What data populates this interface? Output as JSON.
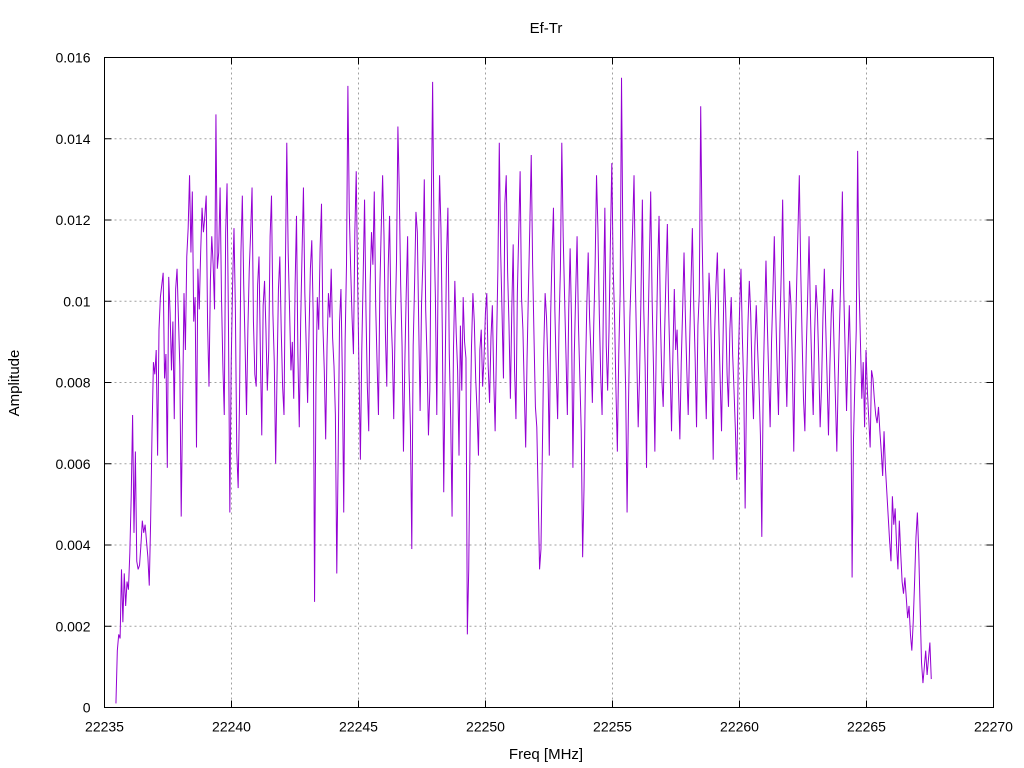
{
  "chart_data": {
    "type": "line",
    "title": "Ef-Tr",
    "xlabel": "Freq [MHz]",
    "ylabel": "Amplitude",
    "xlim": [
      22235,
      22270
    ],
    "ylim": [
      0,
      0.016
    ],
    "x_ticks": [
      "22235",
      "22240",
      "22245",
      "22250",
      "22255",
      "22260",
      "22265",
      "22270"
    ],
    "y_ticks": [
      "0",
      "0.002",
      "0.004",
      "0.006",
      "0.008",
      "0.01",
      "0.012",
      "0.014",
      "0.016"
    ],
    "grid": true,
    "legend": "none",
    "line_color": "#9400d3",
    "series": [
      {
        "x_start": 22235.45,
        "x_end": 22267.55,
        "values": [
          0.0001,
          0.0014,
          0.0018,
          0.0017,
          0.0034,
          0.0021,
          0.0033,
          0.0025,
          0.0031,
          0.0029,
          0.0038,
          0.0052,
          0.0072,
          0.0043,
          0.0063,
          0.0036,
          0.0034,
          0.0035,
          0.004,
          0.0046,
          0.0043,
          0.0045,
          0.0041,
          0.0037,
          0.003,
          0.0046,
          0.0068,
          0.0085,
          0.0082,
          0.0088,
          0.0062,
          0.0093,
          0.0101,
          0.0104,
          0.0107,
          0.0081,
          0.0087,
          0.0059,
          0.0106,
          0.0097,
          0.0083,
          0.0095,
          0.0071,
          0.0103,
          0.0108,
          0.0096,
          0.0084,
          0.0047,
          0.0074,
          0.0102,
          0.0088,
          0.0111,
          0.0118,
          0.0131,
          0.0112,
          0.0127,
          0.0095,
          0.0101,
          0.0064,
          0.0108,
          0.0098,
          0.0112,
          0.0123,
          0.0117,
          0.0121,
          0.0126,
          0.0094,
          0.0079,
          0.0105,
          0.0116,
          0.0109,
          0.0098,
          0.0146,
          0.0108,
          0.0112,
          0.0128,
          0.0101,
          0.0084,
          0.0072,
          0.0117,
          0.0129,
          0.0095,
          0.0048,
          0.0085,
          0.0104,
          0.0118,
          0.0098,
          0.0063,
          0.0054,
          0.0076,
          0.0112,
          0.0126,
          0.0104,
          0.0089,
          0.0072,
          0.0093,
          0.0108,
          0.0117,
          0.0128,
          0.0095,
          0.0082,
          0.0079,
          0.0104,
          0.0111,
          0.0087,
          0.0067,
          0.0099,
          0.0105,
          0.0093,
          0.0078,
          0.0088,
          0.0116,
          0.0126,
          0.0097,
          0.0085,
          0.006,
          0.0082,
          0.0103,
          0.0111,
          0.0093,
          0.0079,
          0.0072,
          0.0108,
          0.0139,
          0.0112,
          0.0098,
          0.0083,
          0.009,
          0.0076,
          0.0104,
          0.0121,
          0.0087,
          0.0069,
          0.0095,
          0.0112,
          0.0128,
          0.0102,
          0.0089,
          0.0075,
          0.0092,
          0.0108,
          0.0115,
          0.0097,
          0.0026,
          0.0079,
          0.0101,
          0.0093,
          0.0113,
          0.0124,
          0.0094,
          0.0083,
          0.0066,
          0.0089,
          0.0102,
          0.0096,
          0.0108,
          0.0091,
          0.0084,
          0.0072,
          0.0033,
          0.0062,
          0.0095,
          0.0103,
          0.0082,
          0.0048,
          0.009,
          0.0109,
          0.0153,
          0.0122,
          0.0108,
          0.0096,
          0.0087,
          0.0117,
          0.0132,
          0.0105,
          0.0083,
          0.0061,
          0.0088,
          0.0106,
          0.0125,
          0.0098,
          0.0079,
          0.0068,
          0.0104,
          0.0117,
          0.0109,
          0.0127,
          0.0099,
          0.0085,
          0.0072,
          0.0103,
          0.0118,
          0.0131,
          0.0116,
          0.0092,
          0.0079,
          0.0108,
          0.0121,
          0.0097,
          0.0088,
          0.0071,
          0.0094,
          0.011,
          0.0143,
          0.0127,
          0.0104,
          0.0089,
          0.0063,
          0.0085,
          0.0102,
          0.0116,
          0.0083,
          0.0069,
          0.0039,
          0.0089,
          0.0104,
          0.0122,
          0.0117,
          0.0094,
          0.0073,
          0.0099,
          0.011,
          0.013,
          0.0098,
          0.0086,
          0.0067,
          0.0078,
          0.0121,
          0.0154,
          0.0117,
          0.0101,
          0.0072,
          0.0108,
          0.0131,
          0.0118,
          0.0092,
          0.0053,
          0.0082,
          0.0111,
          0.0123,
          0.0087,
          0.0071,
          0.0047,
          0.0088,
          0.0105,
          0.0092,
          0.0083,
          0.0062,
          0.0094,
          0.0078,
          0.0101,
          0.009,
          0.0086,
          0.0018,
          0.0034,
          0.0068,
          0.0089,
          0.0102,
          0.0095,
          0.0081,
          0.0073,
          0.0062,
          0.0088,
          0.0093,
          0.0079,
          0.0086,
          0.0097,
          0.0102,
          0.0084,
          0.0075,
          0.0091,
          0.0099,
          0.0081,
          0.0068,
          0.0089,
          0.0108,
          0.0139,
          0.0112,
          0.0097,
          0.0081,
          0.0124,
          0.0131,
          0.0107,
          0.0094,
          0.0076,
          0.0098,
          0.0114,
          0.0083,
          0.0071,
          0.0102,
          0.0117,
          0.0132,
          0.0101,
          0.0093,
          0.0078,
          0.0064,
          0.0086,
          0.0103,
          0.0119,
          0.0136,
          0.0109,
          0.0091,
          0.0074,
          0.0069,
          0.0052,
          0.0034,
          0.0039,
          0.0063,
          0.0088,
          0.0102,
          0.0096,
          0.0084,
          0.0062,
          0.0097,
          0.0112,
          0.0123,
          0.0098,
          0.0083,
          0.0071,
          0.0094,
          0.0108,
          0.0139,
          0.0116,
          0.0101,
          0.0087,
          0.0072,
          0.0098,
          0.0113,
          0.0095,
          0.0059,
          0.0087,
          0.0102,
          0.0116,
          0.0094,
          0.0081,
          0.0068,
          0.0037,
          0.0054,
          0.0081,
          0.0099,
          0.0112,
          0.0096,
          0.0087,
          0.0075,
          0.0094,
          0.0109,
          0.0131,
          0.0118,
          0.0097,
          0.0082,
          0.0072,
          0.0101,
          0.0123,
          0.0089,
          0.0078,
          0.0093,
          0.0115,
          0.0134,
          0.0108,
          0.0096,
          0.0078,
          0.0063,
          0.0087,
          0.0102,
          0.0155,
          0.0113,
          0.0094,
          0.0078,
          0.0048,
          0.0074,
          0.0096,
          0.0107,
          0.0118,
          0.0131,
          0.0104,
          0.0086,
          0.0069,
          0.0082,
          0.0101,
          0.0125,
          0.0098,
          0.0084,
          0.0059,
          0.0091,
          0.0109,
          0.0127,
          0.0101,
          0.0084,
          0.0063,
          0.0089,
          0.0108,
          0.0121,
          0.0096,
          0.0081,
          0.0074,
          0.0092,
          0.0106,
          0.0119,
          0.0097,
          0.0083,
          0.0068,
          0.0087,
          0.0103,
          0.0088,
          0.0093,
          0.0079,
          0.0066,
          0.0085,
          0.0098,
          0.0112,
          0.0096,
          0.0083,
          0.0072,
          0.0089,
          0.0104,
          0.0118,
          0.0099,
          0.0086,
          0.0069,
          0.0094,
          0.0102,
          0.0148,
          0.0116,
          0.0097,
          0.0084,
          0.0071,
          0.009,
          0.0107,
          0.0099,
          0.0083,
          0.0061,
          0.0092,
          0.0104,
          0.0112,
          0.0095,
          0.0081,
          0.0068,
          0.0089,
          0.0108,
          0.0098,
          0.0082,
          0.0074,
          0.0093,
          0.0101,
          0.0087,
          0.0078,
          0.0068,
          0.0056,
          0.0084,
          0.0098,
          0.0108,
          0.0091,
          0.0079,
          0.0049,
          0.0078,
          0.0094,
          0.0105,
          0.0097,
          0.0082,
          0.0071,
          0.0089,
          0.0099,
          0.0088,
          0.0079,
          0.0067,
          0.0042,
          0.0079,
          0.0096,
          0.011,
          0.0094,
          0.0081,
          0.0069,
          0.009,
          0.0102,
          0.0116,
          0.0098,
          0.0084,
          0.0072,
          0.0093,
          0.0107,
          0.0125,
          0.0101,
          0.0087,
          0.0074,
          0.0091,
          0.0105,
          0.0099,
          0.0084,
          0.0063,
          0.0087,
          0.0103,
          0.0117,
          0.0131,
          0.0108,
          0.0091,
          0.0076,
          0.0068,
          0.0088,
          0.0101,
          0.0116,
          0.0097,
          0.0083,
          0.0072,
          0.0092,
          0.0104,
          0.0098,
          0.0085,
          0.0069,
          0.0079,
          0.0096,
          0.0108,
          0.0094,
          0.0081,
          0.0067,
          0.0084,
          0.0097,
          0.0103,
          0.0089,
          0.0076,
          0.0063,
          0.0081,
          0.0095,
          0.0108,
          0.0127,
          0.0102,
          0.0088,
          0.0073,
          0.0087,
          0.0099,
          0.0084,
          0.0032,
          0.0066,
          0.008,
          0.0093,
          0.0137,
          0.0104,
          0.009,
          0.0076,
          0.0085,
          0.0069,
          0.0088,
          0.0078,
          0.0071,
          0.0064,
          0.0083,
          0.0081,
          0.0076,
          0.0072,
          0.007,
          0.0074,
          0.0068,
          0.0063,
          0.0057,
          0.0068,
          0.0059,
          0.0053,
          0.0047,
          0.0041,
          0.0036,
          0.0052,
          0.0045,
          0.0049,
          0.004,
          0.0034,
          0.0046,
          0.0038,
          0.0031,
          0.0028,
          0.0032,
          0.0027,
          0.0022,
          0.0025,
          0.0018,
          0.0014,
          0.0021,
          0.0031,
          0.0042,
          0.0048,
          0.0038,
          0.0024,
          0.0011,
          0.0006,
          0.001,
          0.0014,
          0.0008,
          0.0012,
          0.0016,
          0.0007
        ]
      }
    ]
  }
}
